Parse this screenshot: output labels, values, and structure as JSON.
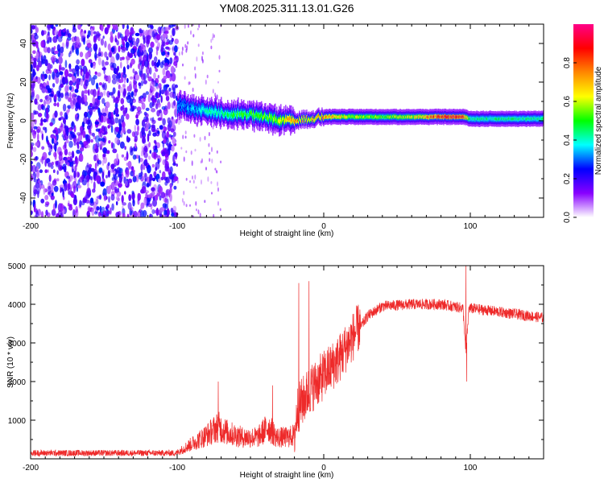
{
  "title": "YM08.2025.311.13.01.G26",
  "chart_data": [
    {
      "type": "heatmap",
      "name": "spectrogram",
      "xlabel": "Height of straight line (km)",
      "ylabel": "Frequency (Hz)",
      "xlim": [
        -200,
        150
      ],
      "ylim": [
        -50,
        50
      ],
      "xticks": [
        -200,
        -100,
        0,
        100
      ],
      "xtick_labels": [
        "-200",
        "-100",
        "0",
        "100"
      ],
      "yticks": [
        -40,
        -20,
        0,
        20,
        40
      ],
      "ytick_labels": [
        "-40",
        "-20",
        "0",
        "20",
        "40"
      ],
      "colorbar": {
        "label": "Normalized spectral amplitude",
        "range": [
          0,
          1
        ],
        "ticks": [
          0,
          0.2,
          0.4,
          0.6,
          0.8
        ],
        "tick_labels": [
          "0.0",
          "0.2",
          "0.4",
          "0.6",
          "0.8"
        ],
        "colormap": [
          "#ffffff",
          "#8800ff",
          "#0000ff",
          "#00ffff",
          "#00ff00",
          "#ffff00",
          "#ff8800",
          "#ff0000",
          "#ff0088"
        ]
      },
      "noise_region_x": [
        -200,
        -100
      ],
      "signal_track": {
        "x": [
          -100,
          -90,
          -80,
          -70,
          -60,
          -50,
          -40,
          -30,
          -20,
          -10,
          0,
          20,
          40,
          60,
          80,
          95,
          100,
          150
        ],
        "freq": [
          8,
          6,
          5,
          4,
          3,
          3,
          2,
          0,
          0,
          1,
          2,
          2,
          2,
          2,
          2,
          2,
          1,
          1
        ],
        "amplitude": [
          0.3,
          0.35,
          0.4,
          0.45,
          0.5,
          0.5,
          0.55,
          0.6,
          0.75,
          0.7,
          0.75,
          0.6,
          0.55,
          0.6,
          0.9,
          0.85,
          0.45,
          0.45
        ]
      }
    },
    {
      "type": "line",
      "name": "snr",
      "xlabel": "Height of straight line (km)",
      "ylabel": "SNR (10 * v/v)",
      "xlim": [
        -200,
        150
      ],
      "ylim": [
        0,
        5000
      ],
      "xticks": [
        -200,
        -100,
        0,
        100
      ],
      "xtick_labels": [
        "-200",
        "-100",
        "0",
        "100"
      ],
      "yticks": [
        1000,
        2000,
        3000,
        4000,
        5000
      ],
      "ytick_labels": [
        "1000",
        "2000",
        "3000",
        "4000",
        "5000"
      ],
      "color": "#ee2a2a",
      "envelope": {
        "x": [
          -200,
          -100,
          -90,
          -80,
          -72,
          -65,
          -55,
          -45,
          -38,
          -32,
          -25,
          -20,
          -18,
          -10,
          -5,
          0,
          10,
          20,
          30,
          40,
          60,
          80,
          95,
          97,
          99,
          110,
          130,
          150
        ],
        "y": [
          150,
          150,
          350,
          550,
          750,
          600,
          500,
          500,
          750,
          500,
          500,
          550,
          1200,
          1700,
          1900,
          2100,
          2500,
          3100,
          3700,
          3950,
          4000,
          4000,
          3900,
          2700,
          3900,
          3850,
          3750,
          3650
        ]
      },
      "spikes": [
        {
          "x": -72,
          "y": 2000
        },
        {
          "x": -35,
          "y": 1900
        },
        {
          "x": -17,
          "y": 4550
        },
        {
          "x": -10,
          "y": 4600
        },
        {
          "x": 97,
          "y": 5000
        },
        {
          "x": 97.5,
          "y": 2000
        }
      ]
    }
  ]
}
